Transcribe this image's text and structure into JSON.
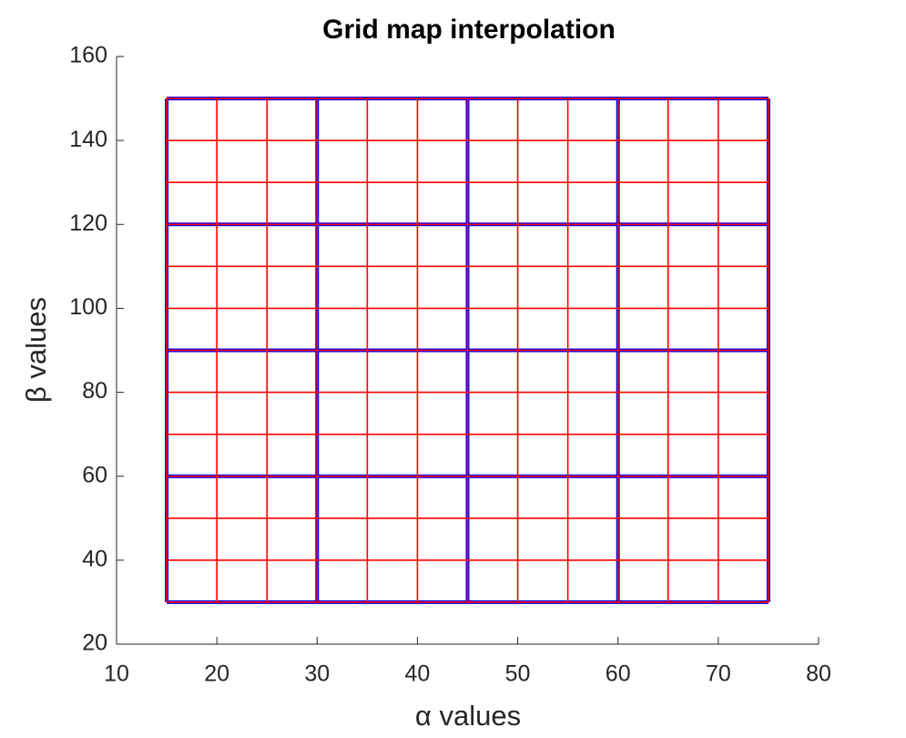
{
  "chart_data": {
    "type": "mesh",
    "title": "Grid map interpolation",
    "xlabel": "α values",
    "ylabel": "β values",
    "xlim": [
      10,
      80
    ],
    "xticks": [
      10,
      20,
      30,
      40,
      50,
      60,
      70,
      80
    ],
    "ylim": [
      20,
      160
    ],
    "yticks": [
      20,
      40,
      60,
      80,
      100,
      120,
      140,
      160
    ],
    "series": [
      {
        "color": "#0000ff",
        "x": [
          15,
          30,
          45,
          60,
          75
        ],
        "y": [
          30,
          60,
          90,
          120,
          150
        ]
      },
      {
        "color": "#ff0000",
        "x": [
          15,
          20,
          25,
          30,
          35,
          40,
          45,
          50,
          55,
          60,
          65,
          70,
          75
        ],
        "y": [
          30,
          40,
          50,
          60,
          70,
          80,
          90,
          100,
          110,
          120,
          130,
          140,
          150
        ]
      }
    ]
  }
}
